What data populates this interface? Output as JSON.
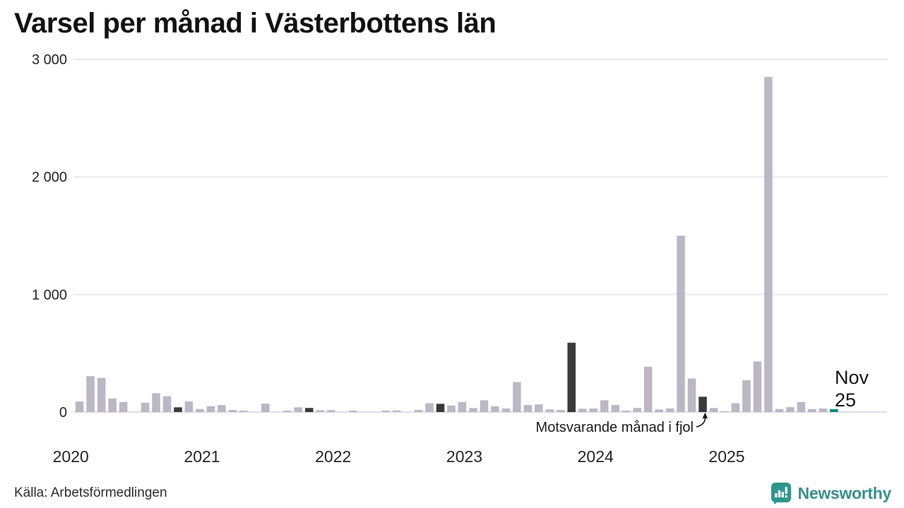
{
  "title": "Varsel per månad i Västerbottens län",
  "source": "Källa: Arbetsförmedlingen",
  "brand": {
    "name": "Newsworthy",
    "color": "#2e968c"
  },
  "annotation": {
    "label": "Motsvarande månad i fjol"
  },
  "latest": {
    "line1": "Nov",
    "line2": "25"
  },
  "colors": {
    "bar": "#bcb7c4",
    "highlight_bar": "#3a3a3a",
    "current_bar": "#0d8b7b",
    "gridline": "#e9e9ed",
    "baseline": "#e0e0e5",
    "axis_text": "#262626"
  },
  "chart_data": {
    "type": "bar",
    "title": "Varsel per månad i Västerbottens län",
    "xlabel": "",
    "ylabel": "",
    "ylim": [
      0,
      3000
    ],
    "grid": "horizontal",
    "legend": "none",
    "period": "monthly, Jan 2020 - Nov 2025",
    "y_ticks": [
      {
        "value": 0,
        "label": "0"
      },
      {
        "value": 1000,
        "label": "1 000"
      },
      {
        "value": 2000,
        "label": "2 000"
      },
      {
        "value": 3000,
        "label": "3 000"
      }
    ],
    "years": [
      {
        "year": "2020",
        "monthly_values": [
          0,
          90,
          305,
          290,
          115,
          85,
          0,
          80,
          160,
          135,
          40,
          90
        ]
      },
      {
        "year": "2021",
        "monthly_values": [
          25,
          50,
          60,
          18,
          12,
          0,
          72,
          0,
          12,
          40,
          35,
          15
        ]
      },
      {
        "year": "2022",
        "monthly_values": [
          16,
          0,
          12,
          0,
          0,
          12,
          14,
          0,
          18,
          75,
          70,
          55
        ]
      },
      {
        "year": "2023",
        "monthly_values": [
          85,
          35,
          100,
          50,
          30,
          255,
          60,
          65,
          22,
          18,
          590,
          28
        ]
      },
      {
        "year": "2024",
        "monthly_values": [
          30,
          100,
          60,
          12,
          35,
          385,
          22,
          30,
          1500,
          285,
          130,
          35
        ]
      },
      {
        "year": "2025",
        "monthly_values": [
          8,
          75,
          270,
          430,
          2850,
          25,
          42,
          85,
          25,
          30,
          25
        ]
      }
    ],
    "highlight_months": [
      "2020-11",
      "2021-11",
      "2022-11",
      "2023-11",
      "2024-11"
    ],
    "highlight_meaning": "Motsvarande månad i fjol",
    "current_month": {
      "month": "2025-11",
      "label": "Nov 25",
      "value": 25
    }
  }
}
